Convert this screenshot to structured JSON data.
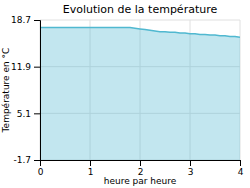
{
  "chart_data": {
    "type": "area",
    "title": "Evolution de la température",
    "x_label": "heure par heure",
    "y_label": "Température en °C",
    "x": [
      0.0,
      0.1,
      0.2,
      0.4,
      0.6,
      0.8,
      1.0,
      1.2,
      1.4,
      1.6,
      1.8,
      2.0,
      2.1,
      2.2,
      2.3,
      2.4,
      2.5,
      2.6,
      2.7,
      2.8,
      2.9,
      3.0,
      3.1,
      3.2,
      3.3,
      3.4,
      3.5,
      3.6,
      3.7,
      3.8,
      3.9,
      4.0
    ],
    "values": [
      17.6,
      17.6,
      17.6,
      17.6,
      17.6,
      17.6,
      17.6,
      17.6,
      17.6,
      17.6,
      17.6,
      17.4,
      17.3,
      17.2,
      17.1,
      17.0,
      17.0,
      16.9,
      16.9,
      16.8,
      16.8,
      16.7,
      16.7,
      16.6,
      16.6,
      16.5,
      16.5,
      16.4,
      16.4,
      16.3,
      16.3,
      16.2
    ],
    "color": "#50b8d0",
    "xlim": [
      0,
      4
    ],
    "xticks": [
      0,
      1,
      2,
      3,
      4
    ],
    "ylim": [
      -1.7,
      18.7
    ],
    "yticks": [
      -1.7,
      5.1,
      11.9,
      18.7
    ],
    "grid": true
  }
}
